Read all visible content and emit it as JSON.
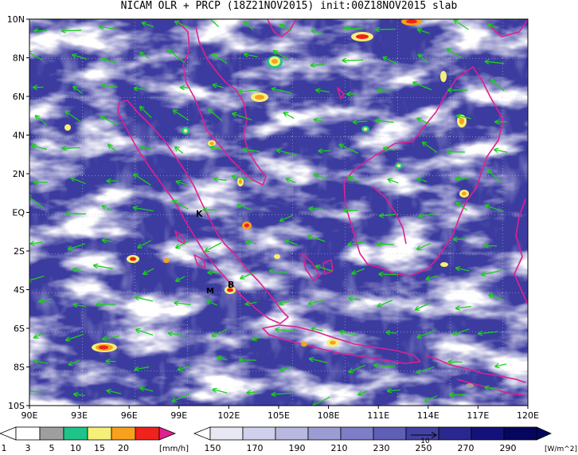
{
  "title": "NICAM OLR + PRCP (18Z21NOV2015) init:00Z18NOV2015 slab",
  "map": {
    "y_ticks": [
      "10N",
      "8N",
      "6N",
      "4N",
      "2N",
      "EQ",
      "2S",
      "4S",
      "6S",
      "8S",
      "10S"
    ],
    "x_ticks": [
      "90E",
      "93E",
      "96E",
      "99E",
      "102E",
      "105E",
      "108E",
      "111E",
      "114E",
      "117E",
      "120E"
    ],
    "markers": [
      {
        "label": "K"
      },
      {
        "label": "M"
      },
      {
        "label": "B"
      }
    ]
  },
  "legend_prcp": {
    "labels": [
      "1",
      "3",
      "5",
      "10",
      "15",
      "20"
    ],
    "unit": "[mm/h]",
    "colors": [
      "#ffffff",
      "#9e9e9e",
      "#1fc489",
      "#f6ef78",
      "#f7a11c",
      "#f0221c",
      "#e02090"
    ]
  },
  "legend_olr": {
    "labels": [
      "150",
      "170",
      "190",
      "210",
      "230",
      "250",
      "270",
      "290"
    ],
    "unit": "[W/m^2]",
    "vector_label": "10",
    "colors": [
      "#ffffff",
      "#e8e8f5",
      "#d0d0ec",
      "#b8b8e0",
      "#9c9cd4",
      "#7e7ec6",
      "#5f5fb6",
      "#4242a4",
      "#28288f",
      "#12127a",
      "#06065e"
    ]
  }
}
